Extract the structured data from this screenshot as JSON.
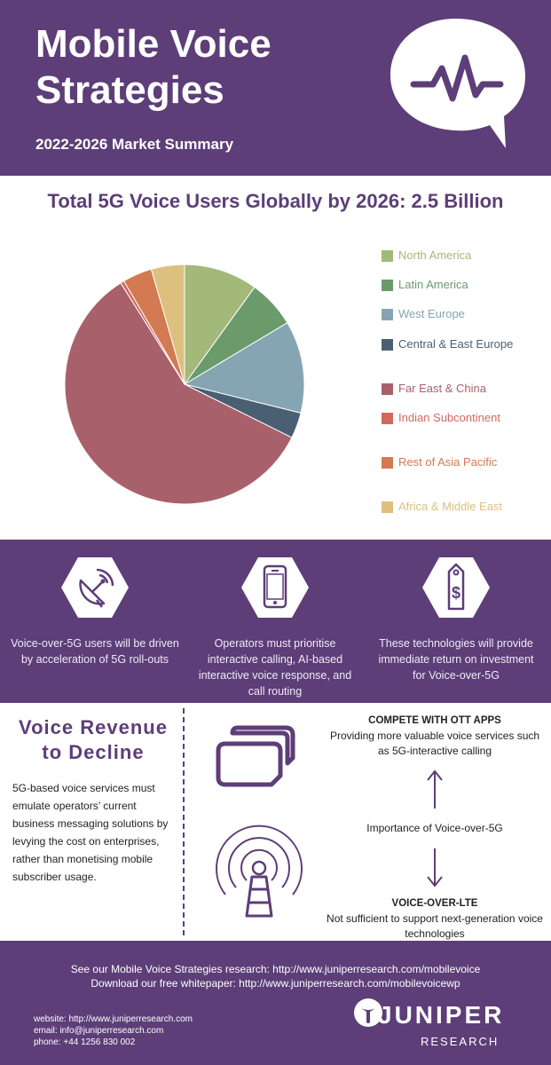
{
  "header": {
    "title": "Mobile Voice Strategies",
    "subtitle": "2022-2026 Market Summary",
    "icon": "speech-bubble-pulse-icon"
  },
  "pie": {
    "heading": "Total 5G Voice Users Globally by 2026: 2.5 Billion"
  },
  "chart_data": {
    "type": "pie",
    "title": "Total 5G Voice Users Globally by 2026: 2.5 Billion",
    "legend_position": "right",
    "categories": [
      "North America",
      "Latin America",
      "West Europe",
      "Central & East Europe",
      "Far East & China",
      "Indian Subcontinent",
      "Rest of Asia Pacific",
      "Africa & Middle East"
    ],
    "values": [
      10,
      6.5,
      12.5,
      3.5,
      59,
      0.5,
      4,
      4.5
    ],
    "colors": [
      "#a2b979",
      "#6b9a6b",
      "#86a5b3",
      "#4a5f72",
      "#a8616a",
      "#d06a5f",
      "#d37a52",
      "#ddc080"
    ]
  },
  "features": [
    {
      "icon": "satellite-dish-icon",
      "text": "Voice-over-5G users will be driven by acceleration of 5G roll-outs"
    },
    {
      "icon": "smartphone-icon",
      "text": "Operators must prioritise interactive calling, AI-based interactive voice response, and call routing"
    },
    {
      "icon": "price-tag-dollar-icon",
      "text": "These technologies will provide immediate return on investment for Voice-over-5G"
    }
  ],
  "revenue": {
    "title": "Voice Revenue to Decline",
    "body": "5G-based voice services must emulate operators’ current business messaging solutions by levying the cost on enterprises, rather than monetising mobile subscriber usage.",
    "top_title": "COMPETE WITH OTT APPS",
    "top_sub": "Providing more valuable voice services such as 5G-interactive calling",
    "middle": "Importance of Voice-over-5G",
    "bottom_title": "VOICE-OVER-LTE",
    "bottom_sub": "Not sufficient to support next-generation voice technologies"
  },
  "footer": {
    "link1": "See our Mobile Voice Strategies research: http://www.juniperresearch.com/mobilevoice",
    "link2": "Download our free whitepaper: http://www.juniperresearch.com/mobilevoicewp",
    "website": "website: http://www.juniperresearch.com",
    "email": "email: info@juniperresearch.com",
    "phone": "phone: +44 1256 830 002",
    "logo_word": "JUNIPER",
    "logo_sub": "RESEARCH"
  }
}
